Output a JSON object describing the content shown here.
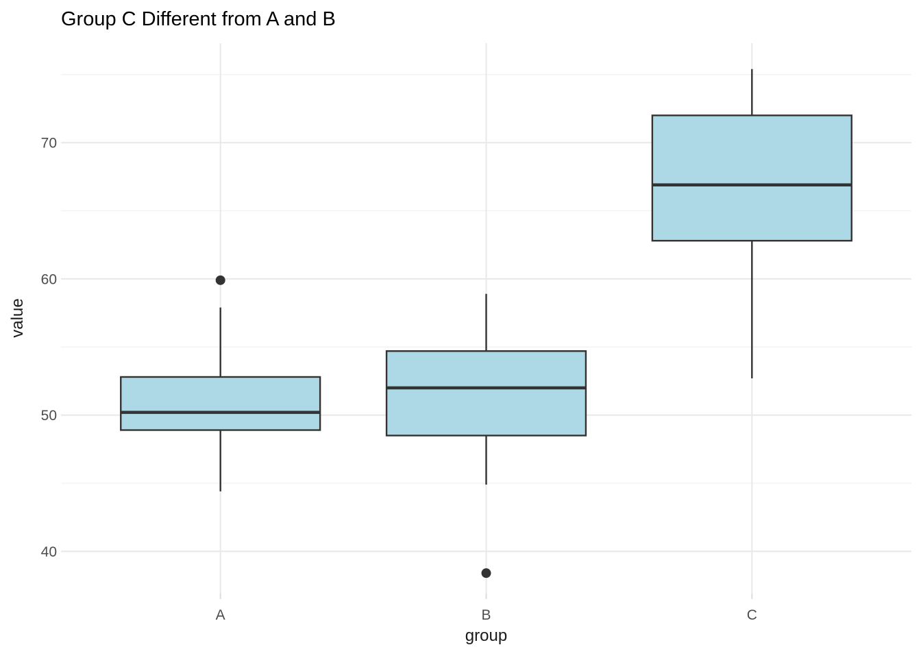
{
  "chart_data": {
    "type": "boxplot",
    "title": "Group C Different from A and B",
    "xlabel": "group",
    "ylabel": "value",
    "categories": [
      "A",
      "B",
      "C"
    ],
    "series": [
      {
        "name": "A",
        "whisker_low": 44.4,
        "q1": 48.9,
        "median": 50.2,
        "q3": 52.8,
        "whisker_high": 57.9,
        "outliers": [
          59.9
        ]
      },
      {
        "name": "B",
        "whisker_low": 44.9,
        "q1": 48.5,
        "median": 52.0,
        "q3": 54.7,
        "whisker_high": 58.9,
        "outliers": [
          38.4
        ]
      },
      {
        "name": "C",
        "whisker_low": 52.7,
        "q1": 62.8,
        "median": 66.9,
        "q3": 72.0,
        "whisker_high": 75.4,
        "outliers": []
      }
    ],
    "ylim": [
      36.9,
      77.3
    ],
    "y_major_ticks": [
      40,
      50,
      60,
      70
    ],
    "y_minor_ticks": [
      45,
      55,
      65,
      75
    ],
    "grid": true,
    "legend": null,
    "colors": {
      "box_fill": "#ADD8E6",
      "box_stroke": "#333333",
      "median_line": "#333333",
      "whisker_line": "#333333",
      "outlier_point": "#333333",
      "grid_major": "#e8e8e8",
      "grid_minor": "#f1f1f1",
      "tick_mark": "#dcdcdc",
      "axis_text": "#4d4d4d",
      "axis_title_text": "#1a1a1a",
      "title_text": "#000000",
      "background": "#ffffff"
    }
  }
}
